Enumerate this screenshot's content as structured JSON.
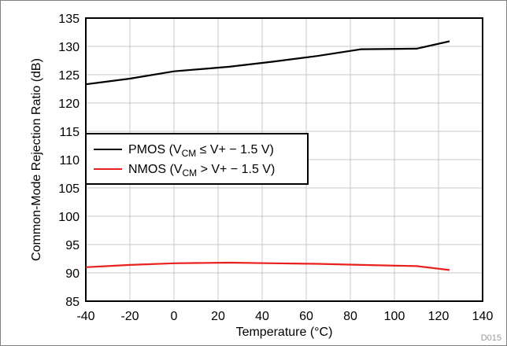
{
  "chart_data": {
    "type": "line",
    "xlabel": "Temperature (°C)",
    "ylabel": "Common-Mode Rejection Ratio (dB)",
    "xlim": [
      -40,
      140
    ],
    "ylim": [
      85,
      135
    ],
    "xticks": [
      "-40",
      "-20",
      "0",
      "20",
      "40",
      "60",
      "80",
      "100",
      "120",
      "140"
    ],
    "yticks": [
      "85",
      "90",
      "95",
      "100",
      "105",
      "110",
      "115",
      "120",
      "125",
      "130",
      "135"
    ],
    "grid": true,
    "legend_position": "center-left",
    "series": [
      {
        "name_main": "PMOS (V",
        "name_sub": "CM",
        "name_rest": " ≤ V+ − 1.5 V)",
        "color": "#000000",
        "x": [
          -40,
          -20,
          0,
          25,
          45,
          65,
          85,
          110,
          125
        ],
        "y": [
          123.3,
          124.3,
          125.6,
          126.4,
          127.3,
          128.3,
          129.5,
          129.6,
          130.9
        ]
      },
      {
        "name_main": "NMOS (V",
        "name_sub": "CM",
        "name_rest": " > V+ − 1.5 V)",
        "color": "#e8201e",
        "x": [
          -40,
          -20,
          0,
          25,
          45,
          65,
          85,
          110,
          125
        ],
        "y": [
          91.0,
          91.4,
          91.7,
          91.8,
          91.7,
          91.6,
          91.4,
          91.2,
          90.5
        ]
      }
    ],
    "figure_id": "D015"
  }
}
